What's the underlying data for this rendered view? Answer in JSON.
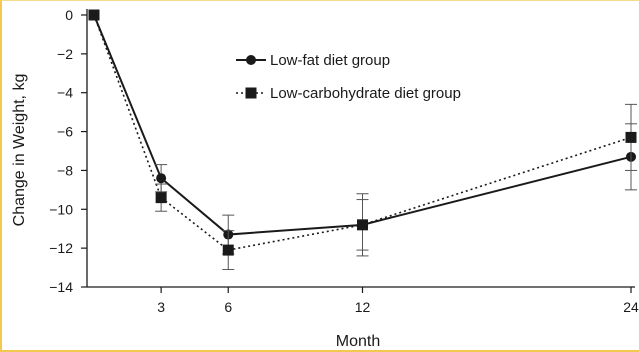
{
  "chart_data": {
    "type": "line",
    "xlabel": "Month",
    "ylabel": "Change in Weight, kg",
    "xlim": [
      0,
      24
    ],
    "ylim": [
      -14,
      0
    ],
    "x_ticks": [
      3,
      6,
      12,
      24
    ],
    "y_ticks": [
      0,
      -2,
      -4,
      -6,
      -8,
      -10,
      -12,
      -14
    ],
    "legend_position": "top-center",
    "series": [
      {
        "name": "Low-fat diet group",
        "marker": "circle",
        "line_style": "solid",
        "color": "#1a1a1a",
        "x": [
          0,
          3,
          6,
          12,
          24
        ],
        "y": [
          0,
          -8.4,
          -11.3,
          -10.8,
          -7.3
        ],
        "err": [
          0,
          0.7,
          1.0,
          1.3,
          1.7
        ]
      },
      {
        "name": "Low-carbohydrate diet group",
        "marker": "square",
        "line_style": "dotted",
        "color": "#1a1a1a",
        "x": [
          0,
          3,
          6,
          12,
          24
        ],
        "y": [
          0,
          -9.4,
          -12.1,
          -10.8,
          -6.3
        ],
        "err": [
          0,
          0.7,
          1.0,
          1.6,
          1.7
        ]
      }
    ]
  }
}
